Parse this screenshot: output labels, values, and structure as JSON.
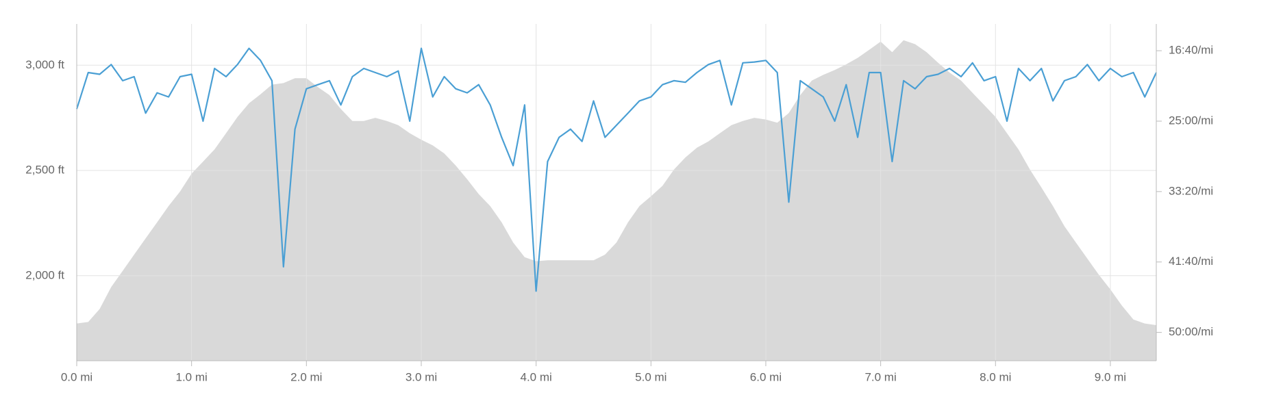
{
  "chart_data": {
    "type": "area-line",
    "x": [
      0.0,
      0.1,
      0.2,
      0.3,
      0.4,
      0.5,
      0.6,
      0.7,
      0.8,
      0.9,
      1.0,
      1.1,
      1.2,
      1.3,
      1.4,
      1.5,
      1.6,
      1.7,
      1.8,
      1.9,
      2.0,
      2.1,
      2.2,
      2.3,
      2.4,
      2.5,
      2.6,
      2.7,
      2.8,
      2.9,
      3.0,
      3.1,
      3.2,
      3.3,
      3.4,
      3.5,
      3.6,
      3.7,
      3.8,
      3.9,
      4.0,
      4.1,
      4.2,
      4.3,
      4.4,
      4.5,
      4.6,
      4.7,
      4.8,
      4.9,
      5.0,
      5.1,
      5.2,
      5.3,
      5.4,
      5.5,
      5.6,
      5.7,
      5.8,
      5.9,
      6.0,
      6.1,
      6.2,
      6.3,
      6.4,
      6.5,
      6.6,
      6.7,
      6.8,
      6.9,
      7.0,
      7.1,
      7.2,
      7.3,
      7.4,
      7.5,
      7.6,
      7.7,
      7.8,
      7.9,
      8.0,
      8.1,
      8.2,
      8.3,
      8.4,
      8.5,
      8.6,
      8.7,
      8.8,
      8.9,
      9.0,
      9.1,
      9.2,
      9.3,
      9.4
    ],
    "series": [
      {
        "kind": "area",
        "color": "#d9d9d9",
        "values": [
          1773,
          1780,
          1842,
          1946,
          2023,
          2100,
          2177,
          2254,
          2331,
          2400,
          2485,
          2542,
          2600,
          2677,
          2754,
          2819,
          2862,
          2908,
          2915,
          2938,
          2938,
          2896,
          2858,
          2792,
          2735,
          2735,
          2750,
          2735,
          2715,
          2677,
          2646,
          2619,
          2581,
          2523,
          2458,
          2388,
          2331,
          2254,
          2158,
          2088,
          2069,
          2073,
          2073,
          2073,
          2073,
          2073,
          2100,
          2158,
          2254,
          2331,
          2377,
          2427,
          2504,
          2562,
          2608,
          2638,
          2677,
          2715,
          2735,
          2750,
          2742,
          2727,
          2773,
          2858,
          2927,
          2954,
          2977,
          3004,
          3035,
          3073,
          3112,
          3062,
          3119,
          3100,
          3062,
          3012,
          2965,
          2927,
          2869,
          2812,
          2754,
          2677,
          2600,
          2504,
          2419,
          2331,
          2235,
          2158,
          2081,
          2004,
          1935,
          1858,
          1792,
          1773,
          1765
        ]
      },
      {
        "kind": "line",
        "axis": "y2",
        "color": "#4a9fd4",
        "values": [
          1414,
          1155,
          1167,
          1098,
          1213,
          1184,
          1443,
          1299,
          1328,
          1184,
          1167,
          1500,
          1126,
          1184,
          1098,
          983,
          1069,
          1213,
          2534,
          1557,
          1270,
          1241,
          1213,
          1385,
          1184,
          1126,
          1155,
          1184,
          1144,
          1500,
          983,
          1328,
          1184,
          1270,
          1299,
          1241,
          1385,
          1615,
          1816,
          1385,
          2707,
          1787,
          1615,
          1557,
          1644,
          1356,
          1615,
          1529,
          1443,
          1356,
          1328,
          1241,
          1213,
          1224,
          1155,
          1098,
          1069,
          1385,
          1086,
          1080,
          1069,
          1155,
          2075,
          1213,
          1270,
          1328,
          1500,
          1241,
          1615,
          1155,
          1155,
          1787,
          1213,
          1270,
          1184,
          1167,
          1126,
          1184,
          1086,
          1213,
          1184,
          1500,
          1126,
          1213,
          1126,
          1356,
          1213,
          1184,
          1098,
          1213,
          1126,
          1184,
          1155,
          1328,
          1155
        ]
      }
    ],
    "xlim": [
      0,
      9.4
    ],
    "xticks": [
      {
        "value": 0,
        "label": "0.0 mi"
      },
      {
        "value": 1,
        "label": "1.0 mi"
      },
      {
        "value": 2,
        "label": "2.0 mi"
      },
      {
        "value": 3,
        "label": "3.0 mi"
      },
      {
        "value": 4,
        "label": "4.0 mi"
      },
      {
        "value": 5,
        "label": "5.0 mi"
      },
      {
        "value": 6,
        "label": "6.0 mi"
      },
      {
        "value": 7,
        "label": "7.0 mi"
      },
      {
        "value": 8,
        "label": "8.0 mi"
      },
      {
        "value": 9,
        "label": "9.0 mi"
      }
    ],
    "ylim": [
      1596,
      3196
    ],
    "yticks": [
      {
        "value": 2000,
        "label": "2,000 ft"
      },
      {
        "value": 2500,
        "label": "2,500 ft"
      },
      {
        "value": 3000,
        "label": "3,000 ft"
      }
    ],
    "y2lim": [
      810,
      3201
    ],
    "y2_inverted": true,
    "y2ticks": [
      {
        "value": 1000,
        "label": "16:40/mi"
      },
      {
        "value": 1500,
        "label": "25:00/mi"
      },
      {
        "value": 2000,
        "label": "33:20/mi"
      },
      {
        "value": 2500,
        "label": "41:40/mi"
      },
      {
        "value": 3000,
        "label": "50:00/mi"
      }
    ],
    "grid": true
  }
}
